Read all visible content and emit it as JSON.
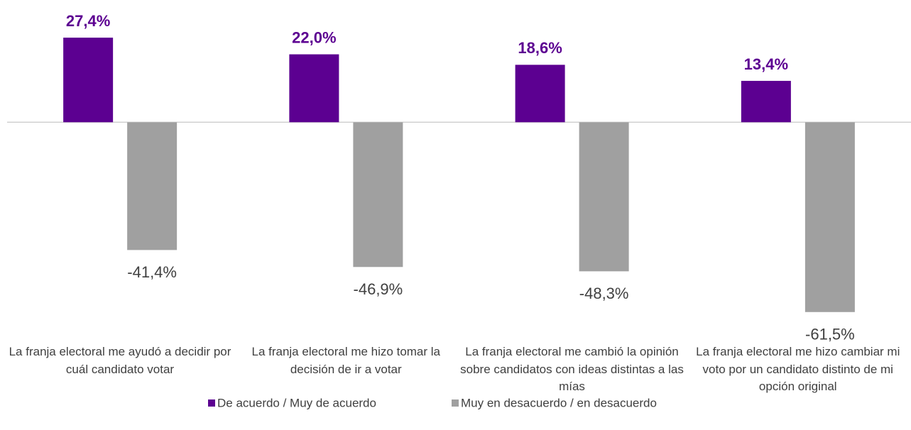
{
  "chart_data": {
    "type": "bar",
    "categories": [
      "La franja electoral me ayudó a decidir por cuál candidato votar",
      "La franja electoral me hizo tomar la decisión de ir a votar",
      "La franja electoral me cambió la opinión sobre candidatos con ideas distintas a las mías",
      "La franja electoral me hizo cambiar mi voto por un candidato distinto de mi opción original"
    ],
    "series": [
      {
        "name": "De acuerdo / Muy de acuerdo",
        "color": "#5c0091",
        "values": [
          27.4,
          22.0,
          18.6,
          13.4
        ],
        "value_labels": [
          "27,4%",
          "22,0%",
          "18,6%",
          "13,4%"
        ]
      },
      {
        "name": "Muy en desacuerdo / en desacuerdo",
        "color": "#a0a0a0",
        "values": [
          -41.4,
          -46.9,
          -48.3,
          -61.5
        ],
        "value_labels": [
          "-41,4%",
          "-46,9%",
          "-48,3%",
          "-61,5%"
        ]
      }
    ],
    "ylim": [
      -65,
      35
    ],
    "legend": "bottom"
  }
}
